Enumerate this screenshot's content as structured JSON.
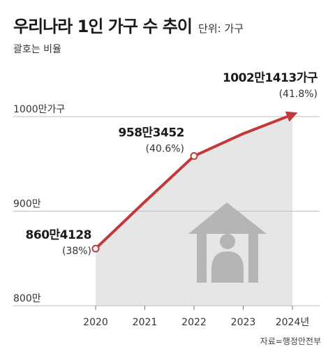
{
  "title": "우리나라 1인 가구 수 추이",
  "unit_label": "단위: 가구",
  "subtitle": "괄호는 비율",
  "source": "자료=행정안전부",
  "colors": {
    "line": "#c0393b",
    "area": "#e6e6e6",
    "icon": "#b5b5b5",
    "grid": "#bdbdbd"
  },
  "icon": "house-person-icon",
  "chart_data": {
    "type": "line",
    "categories": [
      "2020",
      "2021",
      "2022",
      "2023",
      "2024년"
    ],
    "values": [
      8604128,
      9100000,
      9583452,
      9820000,
      10021413
    ],
    "ylim": [
      8000000,
      10200000
    ],
    "y_ticks": [
      {
        "value": 10000000,
        "label": "1000만가구"
      },
      {
        "value": 9000000,
        "label": "900만"
      },
      {
        "value": 8000000,
        "label": "800만"
      }
    ],
    "annotations": [
      {
        "index": 0,
        "label": "860만4128",
        "pct": "(38%)"
      },
      {
        "index": 2,
        "label": "958만3452",
        "pct": "(40.6%)"
      },
      {
        "index": 4,
        "label": "1002만1413가구",
        "pct": "(41.8%)"
      }
    ]
  }
}
